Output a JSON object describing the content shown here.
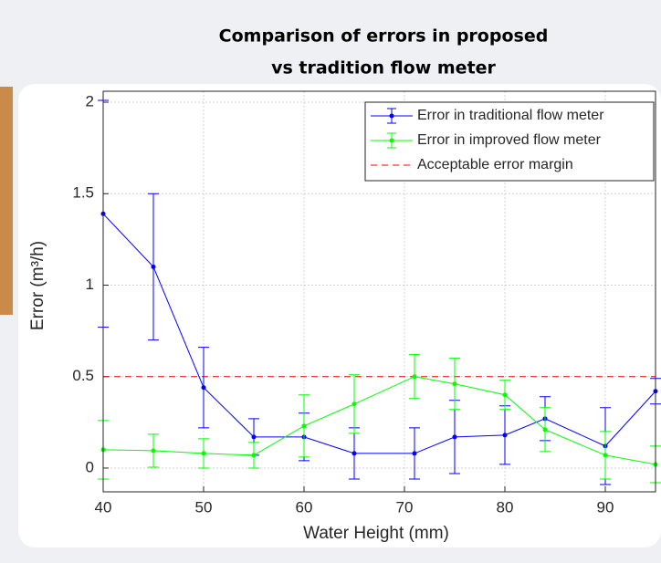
{
  "chart_data": {
    "type": "errorbar-line",
    "title": [
      "Comparison of errors in proposed",
      "vs tradition flow meter"
    ],
    "x_label": "Water Height (mm)",
    "y_label": "Error (m³/h)",
    "xlim": [
      40,
      95
    ],
    "ylim": [
      -0.13,
      2.06
    ],
    "xticks": [
      40,
      50,
      60,
      70,
      80,
      90
    ],
    "yticks": [
      0,
      0.5,
      1,
      1.5,
      2
    ],
    "grid": true,
    "legend": "upper right",
    "series": [
      {
        "name": "Error in traditional flow meter",
        "color": "#0000ff",
        "x": [
          40,
          45,
          50,
          55,
          60,
          65,
          71,
          75,
          80,
          84,
          90,
          95
        ],
        "values": [
          1.39,
          1.1,
          0.44,
          0.17,
          0.17,
          0.08,
          0.08,
          0.17,
          0.18,
          0.27,
          0.12,
          0.42
        ],
        "errors": [
          0.62,
          0.4,
          0.22,
          0.1,
          0.13,
          0.14,
          0.14,
          0.2,
          0.16,
          0.12,
          0.21,
          0.07
        ]
      },
      {
        "name": "Error in improved flow meter",
        "color": "#00ff00",
        "x": [
          40,
          45,
          50,
          55,
          60,
          65,
          71,
          75,
          80,
          84,
          90,
          95
        ],
        "values": [
          0.1,
          0.095,
          0.08,
          0.07,
          0.23,
          0.35,
          0.5,
          0.46,
          0.4,
          0.21,
          0.07,
          0.02
        ],
        "errors": [
          0.16,
          0.09,
          0.08,
          0.07,
          0.17,
          0.16,
          0.12,
          0.14,
          0.08,
          0.12,
          0.13,
          0.1
        ]
      }
    ],
    "reference_line": {
      "name": "Acceptable error margin",
      "value": 0.5,
      "color": "#ff0000"
    }
  }
}
